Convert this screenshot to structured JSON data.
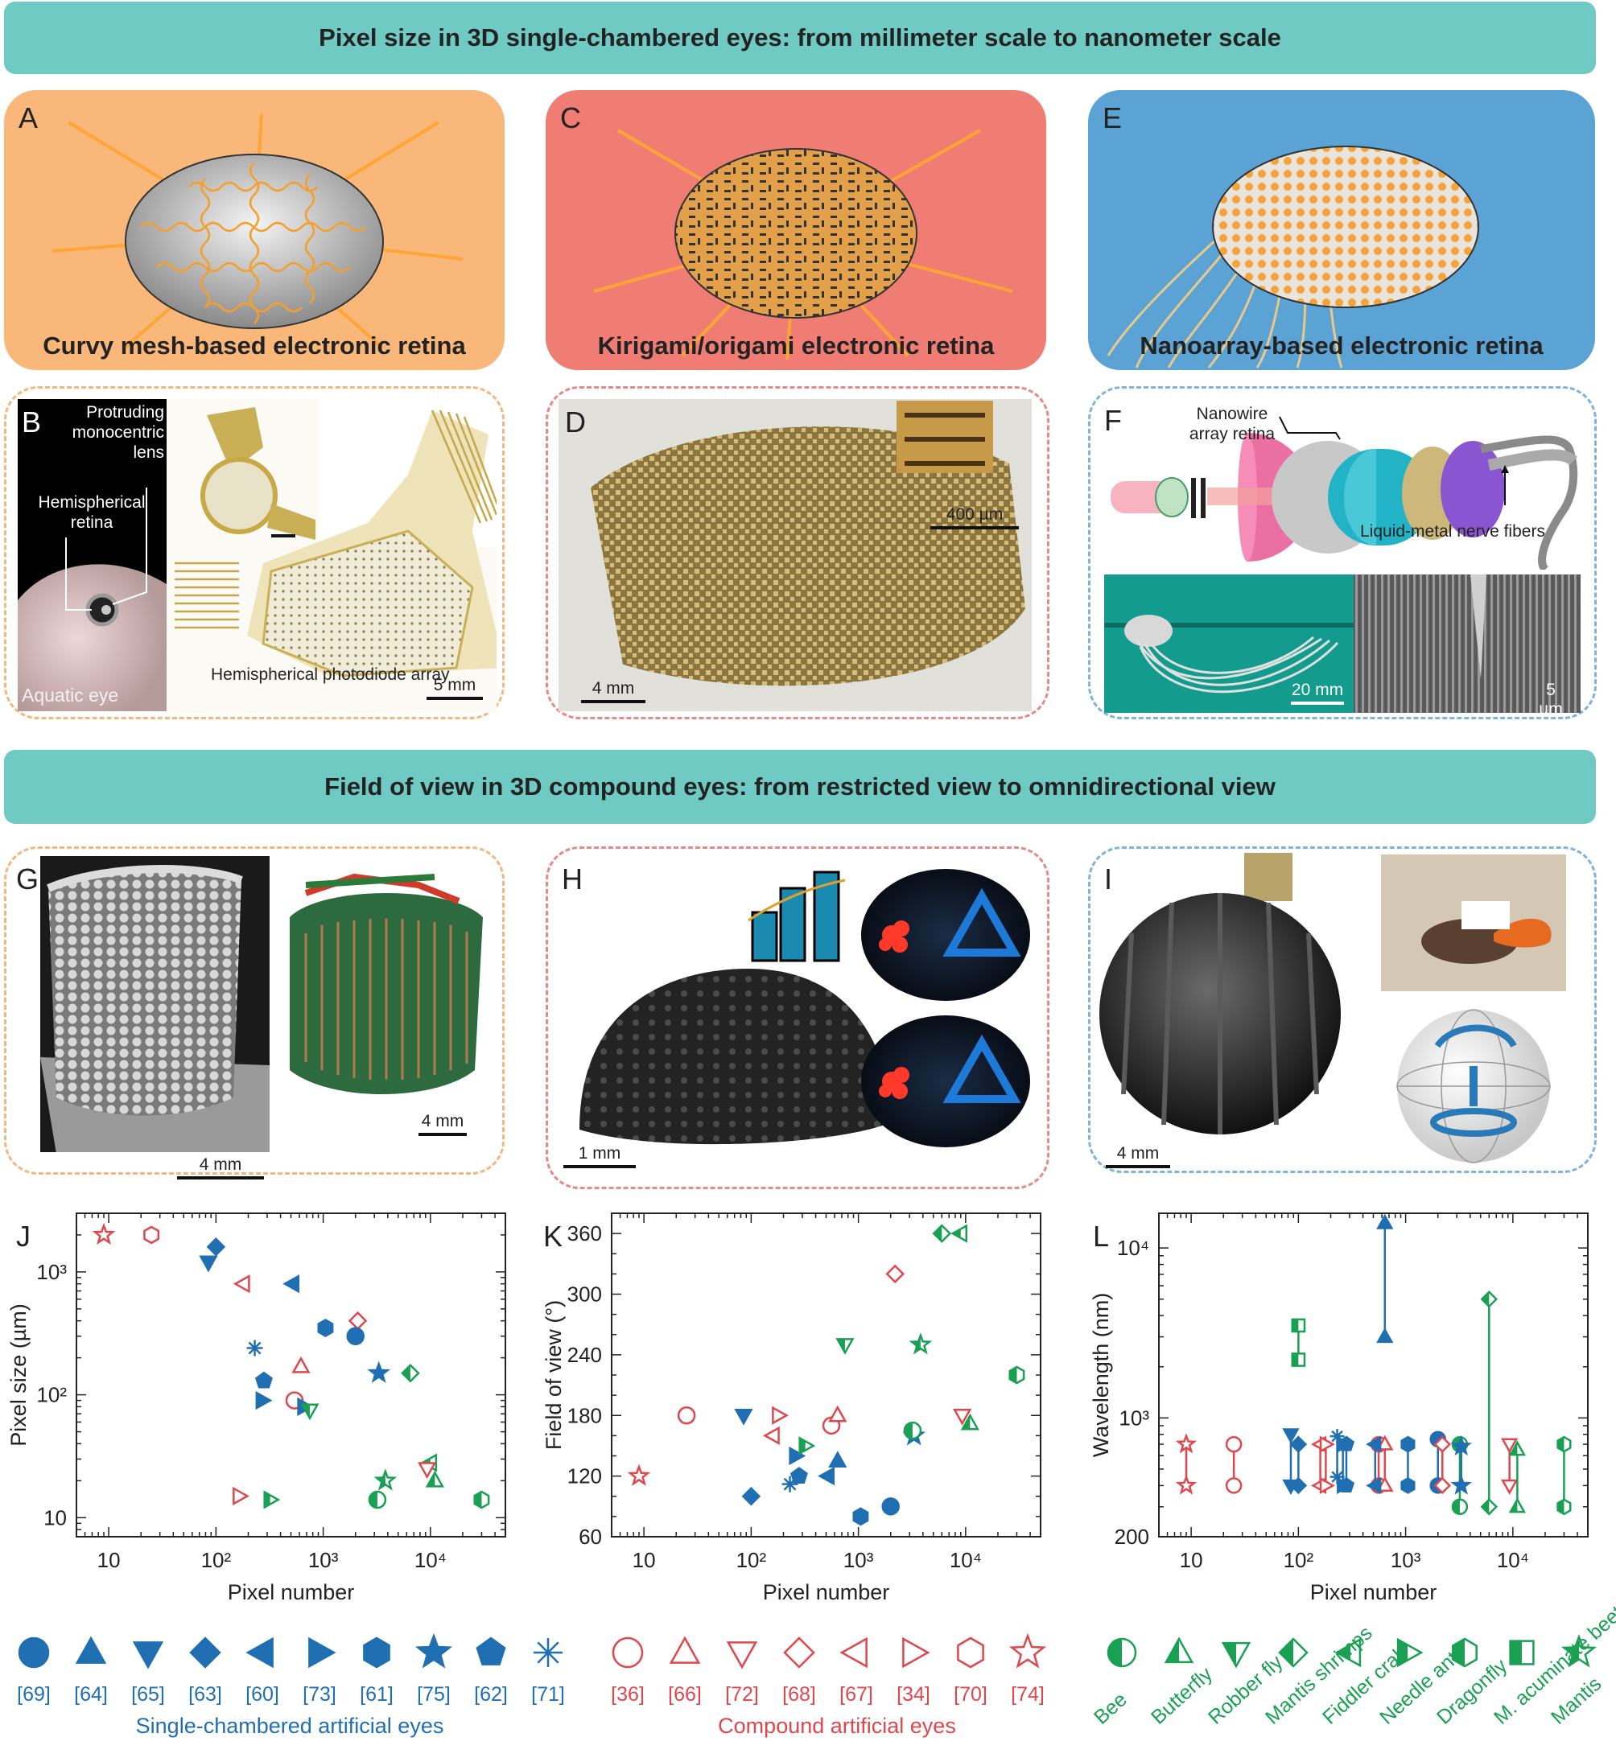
{
  "banners": {
    "top": "Pixel size in 3D single-chambered eyes: from millimeter scale to nanometer scale",
    "middle": "Field of view in 3D compound eyes: from restricted view to omnidirectional view"
  },
  "panels": {
    "A": {
      "letter": "A",
      "caption": "Curvy mesh-based electronic retina"
    },
    "B": {
      "letter": "B",
      "lens": "Protruding monocentric lens",
      "retina": "Hemispherical retina",
      "eye": "Aquatic eye",
      "array": "Hemispherical photodiode array",
      "scale": "5 mm"
    },
    "C": {
      "letter": "C",
      "caption": "Kirigami/origami electronic retina"
    },
    "D": {
      "letter": "D",
      "scale_inset": "400 µm",
      "scale": "4 mm"
    },
    "E": {
      "letter": "E",
      "caption": "Nanoarray-based electronic retina"
    },
    "F": {
      "letter": "F",
      "nanowire": "Nanowire array retina",
      "fibers": "Liquid-metal nerve fibers",
      "scale_left": "20 mm",
      "scale_right": "5 µm"
    },
    "G": {
      "letter": "G",
      "scale_left": "4 mm",
      "scale_right": "4 mm"
    },
    "H": {
      "letter": "H",
      "scale": "1 mm"
    },
    "I": {
      "letter": "I",
      "scale": "4 mm"
    }
  },
  "colors": {
    "blue": "#1f6fb2",
    "red": "#e0474c",
    "green": "#1aa053",
    "orange": "#f9b87a",
    "salmon": "#f07d74",
    "sky": "#5aa3d4",
    "teal": "#6fcac3"
  },
  "chart_data": [
    {
      "type": "scatter",
      "panel": "J",
      "xlabel": "Pixel number",
      "ylabel": "Pixel size (µm)",
      "xscale": "log",
      "yscale": "log",
      "xlim": [
        5,
        50000
      ],
      "ylim": [
        7,
        3000
      ],
      "xticks": [
        {
          "v": 10,
          "label": "10"
        },
        {
          "v": 100,
          "label": "10²"
        },
        {
          "v": 1000,
          "label": "10³"
        },
        {
          "v": 10000,
          "label": "10⁴"
        }
      ],
      "yticks": [
        {
          "v": 10,
          "label": "10"
        },
        {
          "v": 100,
          "label": "10²"
        },
        {
          "v": 1000,
          "label": "10³"
        }
      ],
      "points": [
        {
          "x": 9,
          "y": 2000,
          "m": "star",
          "c": "red",
          "fill": false
        },
        {
          "x": 25,
          "y": 2000,
          "m": "hexagon",
          "c": "red",
          "fill": false
        },
        {
          "x": 100,
          "y": 1600,
          "m": "diamond",
          "c": "blue",
          "fill": true
        },
        {
          "x": 85,
          "y": 1200,
          "m": "down",
          "c": "blue",
          "fill": true
        },
        {
          "x": 180,
          "y": 800,
          "m": "left",
          "c": "red",
          "fill": false
        },
        {
          "x": 520,
          "y": 800,
          "m": "left",
          "c": "blue",
          "fill": true
        },
        {
          "x": 1050,
          "y": 350,
          "m": "hexagon",
          "c": "blue",
          "fill": true
        },
        {
          "x": 2100,
          "y": 400,
          "m": "diamond",
          "c": "red",
          "fill": false
        },
        {
          "x": 2000,
          "y": 300,
          "m": "circle",
          "c": "blue",
          "fill": true
        },
        {
          "x": 230,
          "y": 240,
          "m": "asterisk",
          "c": "blue",
          "fill": true
        },
        {
          "x": 620,
          "y": 170,
          "m": "up",
          "c": "red",
          "fill": false
        },
        {
          "x": 3300,
          "y": 150,
          "m": "star",
          "c": "blue",
          "fill": true
        },
        {
          "x": 6500,
          "y": 150,
          "m": "halfdiamond",
          "c": "green",
          "fill": true
        },
        {
          "x": 280,
          "y": 130,
          "m": "pentagon",
          "c": "blue",
          "fill": true
        },
        {
          "x": 270,
          "y": 90,
          "m": "right",
          "c": "blue",
          "fill": true
        },
        {
          "x": 540,
          "y": 90,
          "m": "circle",
          "c": "red",
          "fill": false
        },
        {
          "x": 660,
          "y": 80,
          "m": "right",
          "c": "blue",
          "fill": true
        },
        {
          "x": 750,
          "y": 75,
          "m": "halfdown",
          "c": "green",
          "fill": true
        },
        {
          "x": 10000,
          "y": 28,
          "m": "halfleft",
          "c": "green",
          "fill": true
        },
        {
          "x": 9300,
          "y": 25,
          "m": "down",
          "c": "red",
          "fill": false
        },
        {
          "x": 11000,
          "y": 20,
          "m": "halfup",
          "c": "green",
          "fill": true
        },
        {
          "x": 3800,
          "y": 20,
          "m": "halfstar",
          "c": "green",
          "fill": true
        },
        {
          "x": 165,
          "y": 15,
          "m": "right",
          "c": "red",
          "fill": false
        },
        {
          "x": 320,
          "y": 14,
          "m": "halfright",
          "c": "green",
          "fill": true
        },
        {
          "x": 3200,
          "y": 14,
          "m": "halfcircle",
          "c": "green",
          "fill": true
        },
        {
          "x": 30000,
          "y": 14,
          "m": "halfhexagon",
          "c": "green",
          "fill": true
        }
      ]
    },
    {
      "type": "scatter",
      "panel": "K",
      "xlabel": "Pixel number",
      "ylabel": "Field of view (°)",
      "xscale": "log",
      "yscale": "linear",
      "xlim": [
        5,
        50000
      ],
      "ylim": [
        60,
        380
      ],
      "xticks": [
        {
          "v": 10,
          "label": "10"
        },
        {
          "v": 100,
          "label": "10²"
        },
        {
          "v": 1000,
          "label": "10³"
        },
        {
          "v": 10000,
          "label": "10⁴"
        }
      ],
      "yticks": [
        {
          "v": 60,
          "label": "60"
        },
        {
          "v": 120,
          "label": "120"
        },
        {
          "v": 180,
          "label": "180"
        },
        {
          "v": 240,
          "label": "240"
        },
        {
          "v": 300,
          "label": "300"
        },
        {
          "v": 360,
          "label": "360"
        }
      ],
      "points": [
        {
          "x": 9,
          "y": 120,
          "m": "star",
          "c": "red",
          "fill": false
        },
        {
          "x": 25,
          "y": 180,
          "m": "circle",
          "c": "red",
          "fill": false
        },
        {
          "x": 85,
          "y": 180,
          "m": "down",
          "c": "blue",
          "fill": true
        },
        {
          "x": 100,
          "y": 100,
          "m": "diamond",
          "c": "blue",
          "fill": true
        },
        {
          "x": 180,
          "y": 180,
          "m": "right",
          "c": "red",
          "fill": false
        },
        {
          "x": 160,
          "y": 160,
          "m": "left",
          "c": "red",
          "fill": false
        },
        {
          "x": 230,
          "y": 112,
          "m": "asterisk",
          "c": "blue",
          "fill": true
        },
        {
          "x": 260,
          "y": 140,
          "m": "right",
          "c": "blue",
          "fill": true
        },
        {
          "x": 280,
          "y": 120,
          "m": "pentagon",
          "c": "blue",
          "fill": true
        },
        {
          "x": 320,
          "y": 150,
          "m": "halfright",
          "c": "green",
          "fill": true
        },
        {
          "x": 520,
          "y": 120,
          "m": "left",
          "c": "blue",
          "fill": true
        },
        {
          "x": 560,
          "y": 170,
          "m": "circle",
          "c": "red",
          "fill": false
        },
        {
          "x": 640,
          "y": 180,
          "m": "up",
          "c": "red",
          "fill": false
        },
        {
          "x": 640,
          "y": 135,
          "m": "up",
          "c": "blue",
          "fill": true
        },
        {
          "x": 750,
          "y": 250,
          "m": "halfdown",
          "c": "green",
          "fill": true
        },
        {
          "x": 1050,
          "y": 80,
          "m": "hexagon",
          "c": "blue",
          "fill": true
        },
        {
          "x": 2000,
          "y": 90,
          "m": "circle",
          "c": "blue",
          "fill": true
        },
        {
          "x": 2200,
          "y": 320,
          "m": "diamond",
          "c": "red",
          "fill": false
        },
        {
          "x": 3300,
          "y": 160,
          "m": "star",
          "c": "blue",
          "fill": true
        },
        {
          "x": 3200,
          "y": 165,
          "m": "halfcircle",
          "c": "green",
          "fill": true
        },
        {
          "x": 3800,
          "y": 250,
          "m": "halfstar",
          "c": "green",
          "fill": true
        },
        {
          "x": 6000,
          "y": 360,
          "m": "halfdiamond",
          "c": "green",
          "fill": true
        },
        {
          "x": 9000,
          "y": 360,
          "m": "halfleft",
          "c": "green",
          "fill": true
        },
        {
          "x": 9300,
          "y": 180,
          "m": "down",
          "c": "red",
          "fill": false
        },
        {
          "x": 11000,
          "y": 172,
          "m": "halfup",
          "c": "green",
          "fill": true
        },
        {
          "x": 30000,
          "y": 220,
          "m": "halfhexagon",
          "c": "green",
          "fill": true
        }
      ]
    },
    {
      "type": "range",
      "panel": "L",
      "xlabel": "Pixel number",
      "ylabel": "Wavelength (nm)",
      "xscale": "log",
      "yscale": "log",
      "xlim": [
        5,
        50000
      ],
      "ylim": [
        200,
        16000
      ],
      "xticks": [
        {
          "v": 10,
          "label": "10"
        },
        {
          "v": 100,
          "label": "10²"
        },
        {
          "v": 1000,
          "label": "10³"
        },
        {
          "v": 10000,
          "label": "10⁴"
        }
      ],
      "yticks": [
        {
          "v": 200,
          "label": "200"
        },
        {
          "v": 1000,
          "label": "10³"
        },
        {
          "v": 10000,
          "label": "10⁴"
        }
      ],
      "ranges": [
        {
          "x": 9,
          "lo": 400,
          "hi": 700,
          "m": "star",
          "c": "red",
          "fill": false
        },
        {
          "x": 25,
          "lo": 400,
          "hi": 700,
          "m": "circle",
          "c": "red",
          "fill": false
        },
        {
          "x": 85,
          "lo": 400,
          "hi": 800,
          "m": "down",
          "c": "blue",
          "fill": true
        },
        {
          "x": 100,
          "lo": 400,
          "hi": 700,
          "m": "diamond",
          "c": "blue",
          "fill": true
        },
        {
          "x": 100,
          "lo": 2200,
          "hi": 3500,
          "m": "halfsquare",
          "c": "green",
          "fill": true
        },
        {
          "x": 160,
          "lo": 400,
          "hi": 700,
          "m": "left",
          "c": "red",
          "fill": false
        },
        {
          "x": 180,
          "lo": 400,
          "hi": 700,
          "m": "right",
          "c": "red",
          "fill": false
        },
        {
          "x": 230,
          "lo": 450,
          "hi": 780,
          "m": "asterisk",
          "c": "blue",
          "fill": true
        },
        {
          "x": 260,
          "lo": 400,
          "hi": 700,
          "m": "right",
          "c": "blue",
          "fill": true
        },
        {
          "x": 280,
          "lo": 400,
          "hi": 700,
          "m": "pentagon",
          "c": "blue",
          "fill": true
        },
        {
          "x": 560,
          "lo": 400,
          "hi": 700,
          "m": "circle",
          "c": "red",
          "fill": false
        },
        {
          "x": 640,
          "lo": 400,
          "hi": 700,
          "m": "up",
          "c": "red",
          "fill": false
        },
        {
          "x": 520,
          "lo": 400,
          "hi": 700,
          "m": "left",
          "c": "blue",
          "fill": true
        },
        {
          "x": 640,
          "lo": 3000,
          "hi": 14000,
          "m": "up",
          "c": "blue",
          "fill": true
        },
        {
          "x": 1050,
          "lo": 400,
          "hi": 700,
          "m": "hexagon",
          "c": "blue",
          "fill": true
        },
        {
          "x": 2000,
          "lo": 400,
          "hi": 750,
          "m": "circle",
          "c": "blue",
          "fill": true
        },
        {
          "x": 2200,
          "lo": 400,
          "hi": 700,
          "m": "diamond",
          "c": "red",
          "fill": false
        },
        {
          "x": 3200,
          "lo": 300,
          "hi": 700,
          "m": "halfcircle",
          "c": "green",
          "fill": true
        },
        {
          "x": 3300,
          "lo": 400,
          "hi": 680,
          "m": "star",
          "c": "blue",
          "fill": true
        },
        {
          "x": 6000,
          "lo": 300,
          "hi": 5000,
          "m": "halfdiamond",
          "c": "green",
          "fill": true
        },
        {
          "x": 9300,
          "lo": 400,
          "hi": 700,
          "m": "down",
          "c": "red",
          "fill": false
        },
        {
          "x": 11000,
          "lo": 300,
          "hi": 650,
          "m": "halfup",
          "c": "green",
          "fill": true
        },
        {
          "x": 30000,
          "lo": 300,
          "hi": 700,
          "m": "halfhexagon",
          "c": "green",
          "fill": true
        }
      ]
    }
  ],
  "legend": {
    "single": {
      "caption": "Single-chambered artificial eyes",
      "items": [
        {
          "m": "circle",
          "ref": "[69]"
        },
        {
          "m": "up",
          "ref": "[64]"
        },
        {
          "m": "down",
          "ref": "[65]"
        },
        {
          "m": "diamond",
          "ref": "[63]"
        },
        {
          "m": "left",
          "ref": "[60]"
        },
        {
          "m": "right",
          "ref": "[73]"
        },
        {
          "m": "hexagon",
          "ref": "[61]"
        },
        {
          "m": "star",
          "ref": "[75]"
        },
        {
          "m": "pentagon",
          "ref": "[62]"
        },
        {
          "m": "asterisk",
          "ref": "[71]"
        }
      ]
    },
    "compound": {
      "caption": "Compound artificial eyes",
      "items": [
        {
          "m": "circle",
          "ref": "[36]"
        },
        {
          "m": "up",
          "ref": "[66]"
        },
        {
          "m": "down",
          "ref": "[72]"
        },
        {
          "m": "diamond",
          "ref": "[68]"
        },
        {
          "m": "left",
          "ref": "[67]"
        },
        {
          "m": "right",
          "ref": "[34]"
        },
        {
          "m": "hexagon",
          "ref": "[70]"
        },
        {
          "m": "star",
          "ref": "[74]"
        }
      ]
    },
    "animals": {
      "items": [
        {
          "m": "halfcircle",
          "name": "Bee"
        },
        {
          "m": "halfup",
          "name": "Butterfly"
        },
        {
          "m": "halfdown",
          "name": "Robber fly"
        },
        {
          "m": "halfdiamond",
          "name": "Mantis shrimps"
        },
        {
          "m": "halfleft",
          "name": "Fiddler crab"
        },
        {
          "m": "halfright",
          "name": "Needle ant"
        },
        {
          "m": "halfhexagon",
          "name": "Dragonfly"
        },
        {
          "m": "halfsquare",
          "name": "M. acuminate beetle"
        },
        {
          "m": "halfstar",
          "name": "Mantis"
        }
      ]
    }
  }
}
